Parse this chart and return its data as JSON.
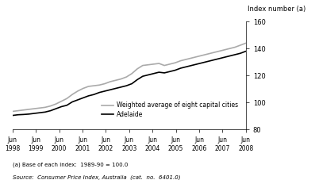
{
  "ylabel": "Index number (a)",
  "ylim": [
    80,
    160
  ],
  "yticks": [
    80,
    100,
    120,
    140,
    160
  ],
  "footnote1": "(a) Base of each index:  1989-90 = 100.0",
  "footnote2": "Source:  Consumer Price Index, Australia  (cat.  no.  6401.0)",
  "legend_adelaide": "Adelaide",
  "legend_weighted": "Weighted average of eight capital cities",
  "adelaide_color": "#000000",
  "weighted_color": "#aaaaaa",
  "line_width": 1.2,
  "x_tick_labels": [
    "Jun\n1998",
    "Jun\n1999",
    "Jun\n2000",
    "Jun\n2001",
    "Jun\n2002",
    "Jun\n2003",
    "Jun\n2004",
    "Jun\n2005",
    "Jun\n2006",
    "Jun\n2007",
    "Jun\n2008"
  ],
  "adelaide_values": [
    90.5,
    91.0,
    91.2,
    91.5,
    92.0,
    92.5,
    93.0,
    94.0,
    95.5,
    97.0,
    98.0,
    100.5,
    102.0,
    103.5,
    105.0,
    106.0,
    107.5,
    108.5,
    109.5,
    110.5,
    111.5,
    112.5,
    114.0,
    117.0,
    119.5,
    120.5,
    121.5,
    122.5,
    122.0,
    123.0,
    124.0,
    125.5,
    126.5,
    127.5,
    128.5,
    129.5,
    130.5,
    131.5,
    132.5,
    133.5,
    134.5,
    135.5,
    136.5,
    138.0
  ],
  "weighted_values": [
    93.5,
    94.0,
    94.5,
    95.0,
    95.5,
    96.0,
    96.5,
    97.5,
    99.0,
    101.0,
    103.0,
    106.0,
    108.5,
    110.5,
    112.0,
    112.5,
    113.0,
    114.0,
    115.5,
    116.5,
    117.5,
    119.0,
    121.5,
    125.0,
    127.5,
    128.0,
    128.5,
    129.0,
    127.5,
    128.5,
    129.5,
    131.0,
    132.0,
    133.0,
    134.0,
    135.0,
    136.0,
    137.0,
    138.0,
    139.0,
    140.0,
    141.0,
    142.5,
    144.0
  ]
}
